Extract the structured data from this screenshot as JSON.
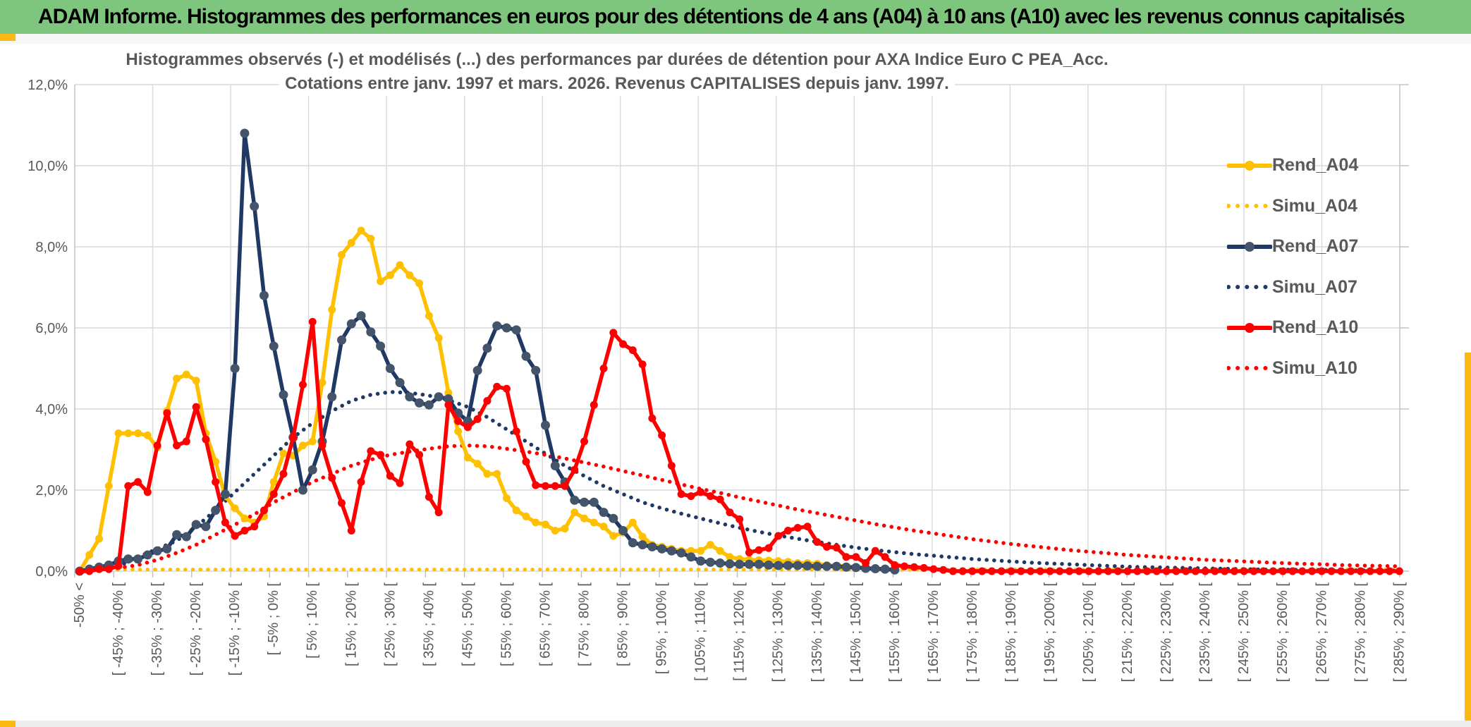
{
  "header": {
    "title": "ADAM Informe. Histogrammes des performances en euros pour des détentions de 4 ans (A04) à 10 ans (A10) avec les revenus connus capitalisés"
  },
  "chart_data": {
    "type": "line",
    "title": "Histogrammes observés (-) et modélisés (...) des performances par durées de détention pour AXA Indice Euro C PEA_Acc.",
    "subtitle": "Cotations entre janv. 1997 et mars. 2026. Revenus CAPITALISES depuis janv. 1997.",
    "ylabel": "",
    "ylim": [
      0,
      12
    ],
    "y_tick_labels": [
      "0,0%",
      "2,0%",
      "4,0%",
      "6,0%",
      "8,0%",
      "10,0%",
      "12,0%"
    ],
    "grid": true,
    "legend_position": "right",
    "x_tick_labels": [
      "-50% <",
      "[ -45% ; -40% [",
      "[ -35% ; -30% [",
      "[ -25% ; -20% [",
      "[ -15% ; -10% [",
      "[ -5% ; 0% [",
      "[ 5% ; 10% [",
      "[ 15% ; 20% [",
      "[ 25% ; 30% [",
      "[ 35% ; 40% [",
      "[ 45% ; 50% [",
      "[ 55% ; 60% [",
      "[ 65% ; 70% [",
      "[ 75% ; 80% [",
      "[ 85% ; 90% [",
      "[ 95% ; 100% [",
      "[ 105% ; 110% [",
      "[ 115% ; 120% [",
      "[ 125% ; 130% [",
      "[ 135% ; 140% [",
      "[ 145% ; 150% [",
      "[ 155% ; 160% [",
      "[ 165% ; 170% [",
      "[ 175% ; 180% [",
      "[ 185% ; 190% [",
      "[ 195% ; 200% [",
      "[ 205% ; 210% [",
      "[ 215% ; 220% [",
      "[ 225% ; 230% [",
      "[ 235% ; 240% [",
      "[ 245% ; 250% [",
      "[ 255% ; 260% [",
      "[ 265% ; 270% [",
      "[ 275% ; 280% [",
      "[ 285% ; 290% ["
    ],
    "series": [
      {
        "name": "Simu_A04",
        "color": "#FFC000",
        "style": "dotted",
        "marker": false,
        "x_step": 2,
        "values": [
          0.04,
          0.04,
          0.04,
          0.04,
          0.04,
          0.04,
          0.04,
          0.04,
          0.04,
          0.04,
          0.04,
          0.04,
          0.04,
          0.04,
          0.04,
          0.04,
          0.04,
          0.04,
          0.04,
          0.04,
          0.04,
          0.04,
          0.04,
          0.04,
          0.04,
          0.04,
          0.04,
          0.04,
          0.04,
          0.04,
          0.04,
          0.04,
          0.04,
          0.04,
          0.04,
          0.04,
          0.04,
          0.04,
          0.04,
          0.04,
          0.04,
          0.04,
          0.04,
          0.04,
          0.04,
          0.04,
          0.04,
          0.04,
          0.04,
          0.04,
          0.04,
          0.04,
          0.04,
          0.04,
          0.04,
          0.04,
          0.04,
          0.04,
          0.04,
          0.04,
          0.04,
          0.04,
          0.04,
          0.04,
          0.04,
          0.04,
          0.04,
          0.04,
          0.04
        ]
      },
      {
        "name": "Simu_A07",
        "color": "#1F3864",
        "style": "dotted",
        "marker": false,
        "x_step": 2,
        "values": [
          0.02,
          0.06,
          0.12,
          0.35,
          0.55,
          0.75,
          1.1,
          1.5,
          1.95,
          2.4,
          2.85,
          3.3,
          3.65,
          3.95,
          4.2,
          4.35,
          4.42,
          4.4,
          4.33,
          4.22,
          4.05,
          3.8,
          3.5,
          3.2,
          2.9,
          2.6,
          2.35,
          2.1,
          1.9,
          1.7,
          1.55,
          1.42,
          1.3,
          1.18,
          1.07,
          0.97,
          0.88,
          0.8,
          0.72,
          0.65,
          0.58,
          0.52,
          0.47,
          0.42,
          0.38,
          0.34,
          0.3,
          0.27,
          0.24,
          0.21,
          0.19,
          0.17,
          0.15,
          0.13,
          0.11,
          0.1,
          0.09,
          0.08,
          0.07,
          0.06,
          0.05,
          0.04,
          0.04,
          0.03,
          0.03,
          0.02,
          0.02,
          0.02,
          0.01
        ]
      },
      {
        "name": "Simu_A10",
        "color": "#FE0000",
        "style": "dotted",
        "marker": false,
        "x_step": 2,
        "values": [
          0.01,
          0.04,
          0.08,
          0.15,
          0.28,
          0.45,
          0.65,
          0.9,
          1.15,
          1.4,
          1.7,
          1.95,
          2.2,
          2.4,
          2.6,
          2.75,
          2.87,
          2.95,
          3.02,
          3.08,
          3.1,
          3.08,
          3.02,
          2.95,
          2.87,
          2.78,
          2.68,
          2.58,
          2.47,
          2.36,
          2.25,
          2.14,
          2.03,
          1.93,
          1.82,
          1.72,
          1.62,
          1.52,
          1.43,
          1.34,
          1.25,
          1.16,
          1.08,
          1.0,
          0.93,
          0.86,
          0.79,
          0.73,
          0.67,
          0.62,
          0.57,
          0.52,
          0.48,
          0.44,
          0.4,
          0.37,
          0.34,
          0.31,
          0.28,
          0.26,
          0.24,
          0.22,
          0.2,
          0.18,
          0.17,
          0.15,
          0.14,
          0.13,
          0.12
        ]
      },
      {
        "name": "Rend_A04",
        "color": "#FFC000",
        "marker_color": "#FFC000",
        "style": "solid",
        "marker": true,
        "x_step": 1,
        "values": [
          0,
          0.4,
          0.8,
          2.1,
          3.4,
          3.4,
          3.4,
          3.35,
          3.05,
          3.95,
          4.75,
          4.85,
          4.7,
          3.4,
          2.7,
          1.85,
          1.55,
          1.3,
          1.2,
          1.35,
          2.2,
          2.9,
          2.85,
          3.1,
          3.2,
          4.65,
          6.45,
          7.8,
          8.1,
          8.4,
          8.2,
          7.15,
          7.3,
          7.55,
          7.3,
          7.1,
          6.3,
          5.75,
          4.4,
          3.45,
          2.8,
          2.65,
          2.4,
          2.4,
          1.8,
          1.5,
          1.35,
          1.2,
          1.15,
          1.0,
          1.05,
          1.45,
          1.3,
          1.2,
          1.1,
          0.87,
          0.95,
          1.2,
          0.85,
          0.65,
          0.6,
          0.55,
          0.5,
          0.5,
          0.5,
          0.65,
          0.5,
          0.35,
          0.3,
          0.28,
          0.27,
          0.26,
          0.25,
          0.23,
          0.2,
          0.2,
          0.18,
          0.15,
          0.13,
          0.12,
          0.1,
          0.08,
          0.06,
          0.04
        ]
      },
      {
        "name": "Rend_A07",
        "color": "#1F3864",
        "marker_color": "#44546A",
        "style": "solid",
        "marker": true,
        "x_step": 1,
        "values": [
          0,
          0.05,
          0.1,
          0.15,
          0.25,
          0.3,
          0.3,
          0.4,
          0.5,
          0.55,
          0.9,
          0.85,
          1.15,
          1.1,
          1.5,
          1.9,
          5.0,
          10.8,
          9.0,
          6.8,
          5.55,
          4.35,
          3.3,
          2.0,
          2.5,
          3.2,
          4.3,
          5.7,
          6.1,
          6.3,
          5.9,
          5.55,
          5.0,
          4.65,
          4.3,
          4.15,
          4.1,
          4.3,
          4.25,
          3.9,
          3.7,
          4.95,
          5.5,
          6.05,
          6.0,
          5.95,
          5.3,
          4.95,
          3.6,
          2.6,
          2.2,
          1.75,
          1.7,
          1.7,
          1.45,
          1.3,
          1.0,
          0.7,
          0.65,
          0.6,
          0.55,
          0.5,
          0.45,
          0.35,
          0.25,
          0.22,
          0.2,
          0.18,
          0.17,
          0.17,
          0.17,
          0.15,
          0.14,
          0.14,
          0.14,
          0.13,
          0.12,
          0.12,
          0.12,
          0.1,
          0.09,
          0.07,
          0.06,
          0.05,
          0.03
        ]
      },
      {
        "name": "Rend_A10",
        "color": "#FE0000",
        "marker_color": "#FE0000",
        "style": "solid",
        "marker": true,
        "x_step": 1,
        "values": [
          0,
          0,
          0.05,
          0.05,
          0.13,
          2.1,
          2.2,
          1.95,
          3.1,
          3.9,
          3.1,
          3.2,
          4.05,
          3.25,
          2.2,
          1.2,
          0.87,
          1.0,
          1.1,
          1.5,
          1.9,
          2.4,
          3.3,
          4.6,
          6.15,
          3.1,
          2.3,
          1.68,
          1.0,
          2.2,
          2.96,
          2.87,
          2.35,
          2.17,
          3.13,
          2.87,
          1.83,
          1.45,
          4.1,
          3.7,
          3.55,
          3.75,
          4.2,
          4.55,
          4.5,
          3.45,
          2.7,
          2.12,
          2.1,
          2.1,
          2.1,
          2.5,
          3.2,
          4.1,
          5.0,
          5.88,
          5.6,
          5.45,
          5.1,
          3.77,
          3.35,
          2.6,
          1.9,
          1.85,
          1.95,
          1.85,
          1.77,
          1.45,
          1.28,
          0.46,
          0.52,
          0.57,
          0.87,
          1.0,
          1.07,
          1.1,
          0.72,
          0.6,
          0.58,
          0.35,
          0.35,
          0.2,
          0.5,
          0.35,
          0.15,
          0.12,
          0.1,
          0.08,
          0.05,
          0.03,
          0,
          0,
          0,
          0,
          0,
          0,
          0,
          0,
          0,
          0,
          0,
          0,
          0,
          0,
          0,
          0,
          0,
          0,
          0,
          0,
          0,
          0,
          0,
          0,
          0,
          0,
          0,
          0,
          0,
          0,
          0,
          0,
          0,
          0,
          0,
          0,
          0,
          0,
          0,
          0,
          0,
          0,
          0,
          0,
          0,
          0,
          0
        ]
      }
    ],
    "legend_order": [
      "Rend_A04",
      "Simu_A04",
      "Rend_A07",
      "Simu_A07",
      "Rend_A10",
      "Simu_A10"
    ]
  },
  "style_colors": {
    "header_green": "#7EC57E",
    "accent_yellow": "#FDB913",
    "grid": "#D9D9D9",
    "axis": "#BFBFBF",
    "text_gray": "#595959"
  }
}
